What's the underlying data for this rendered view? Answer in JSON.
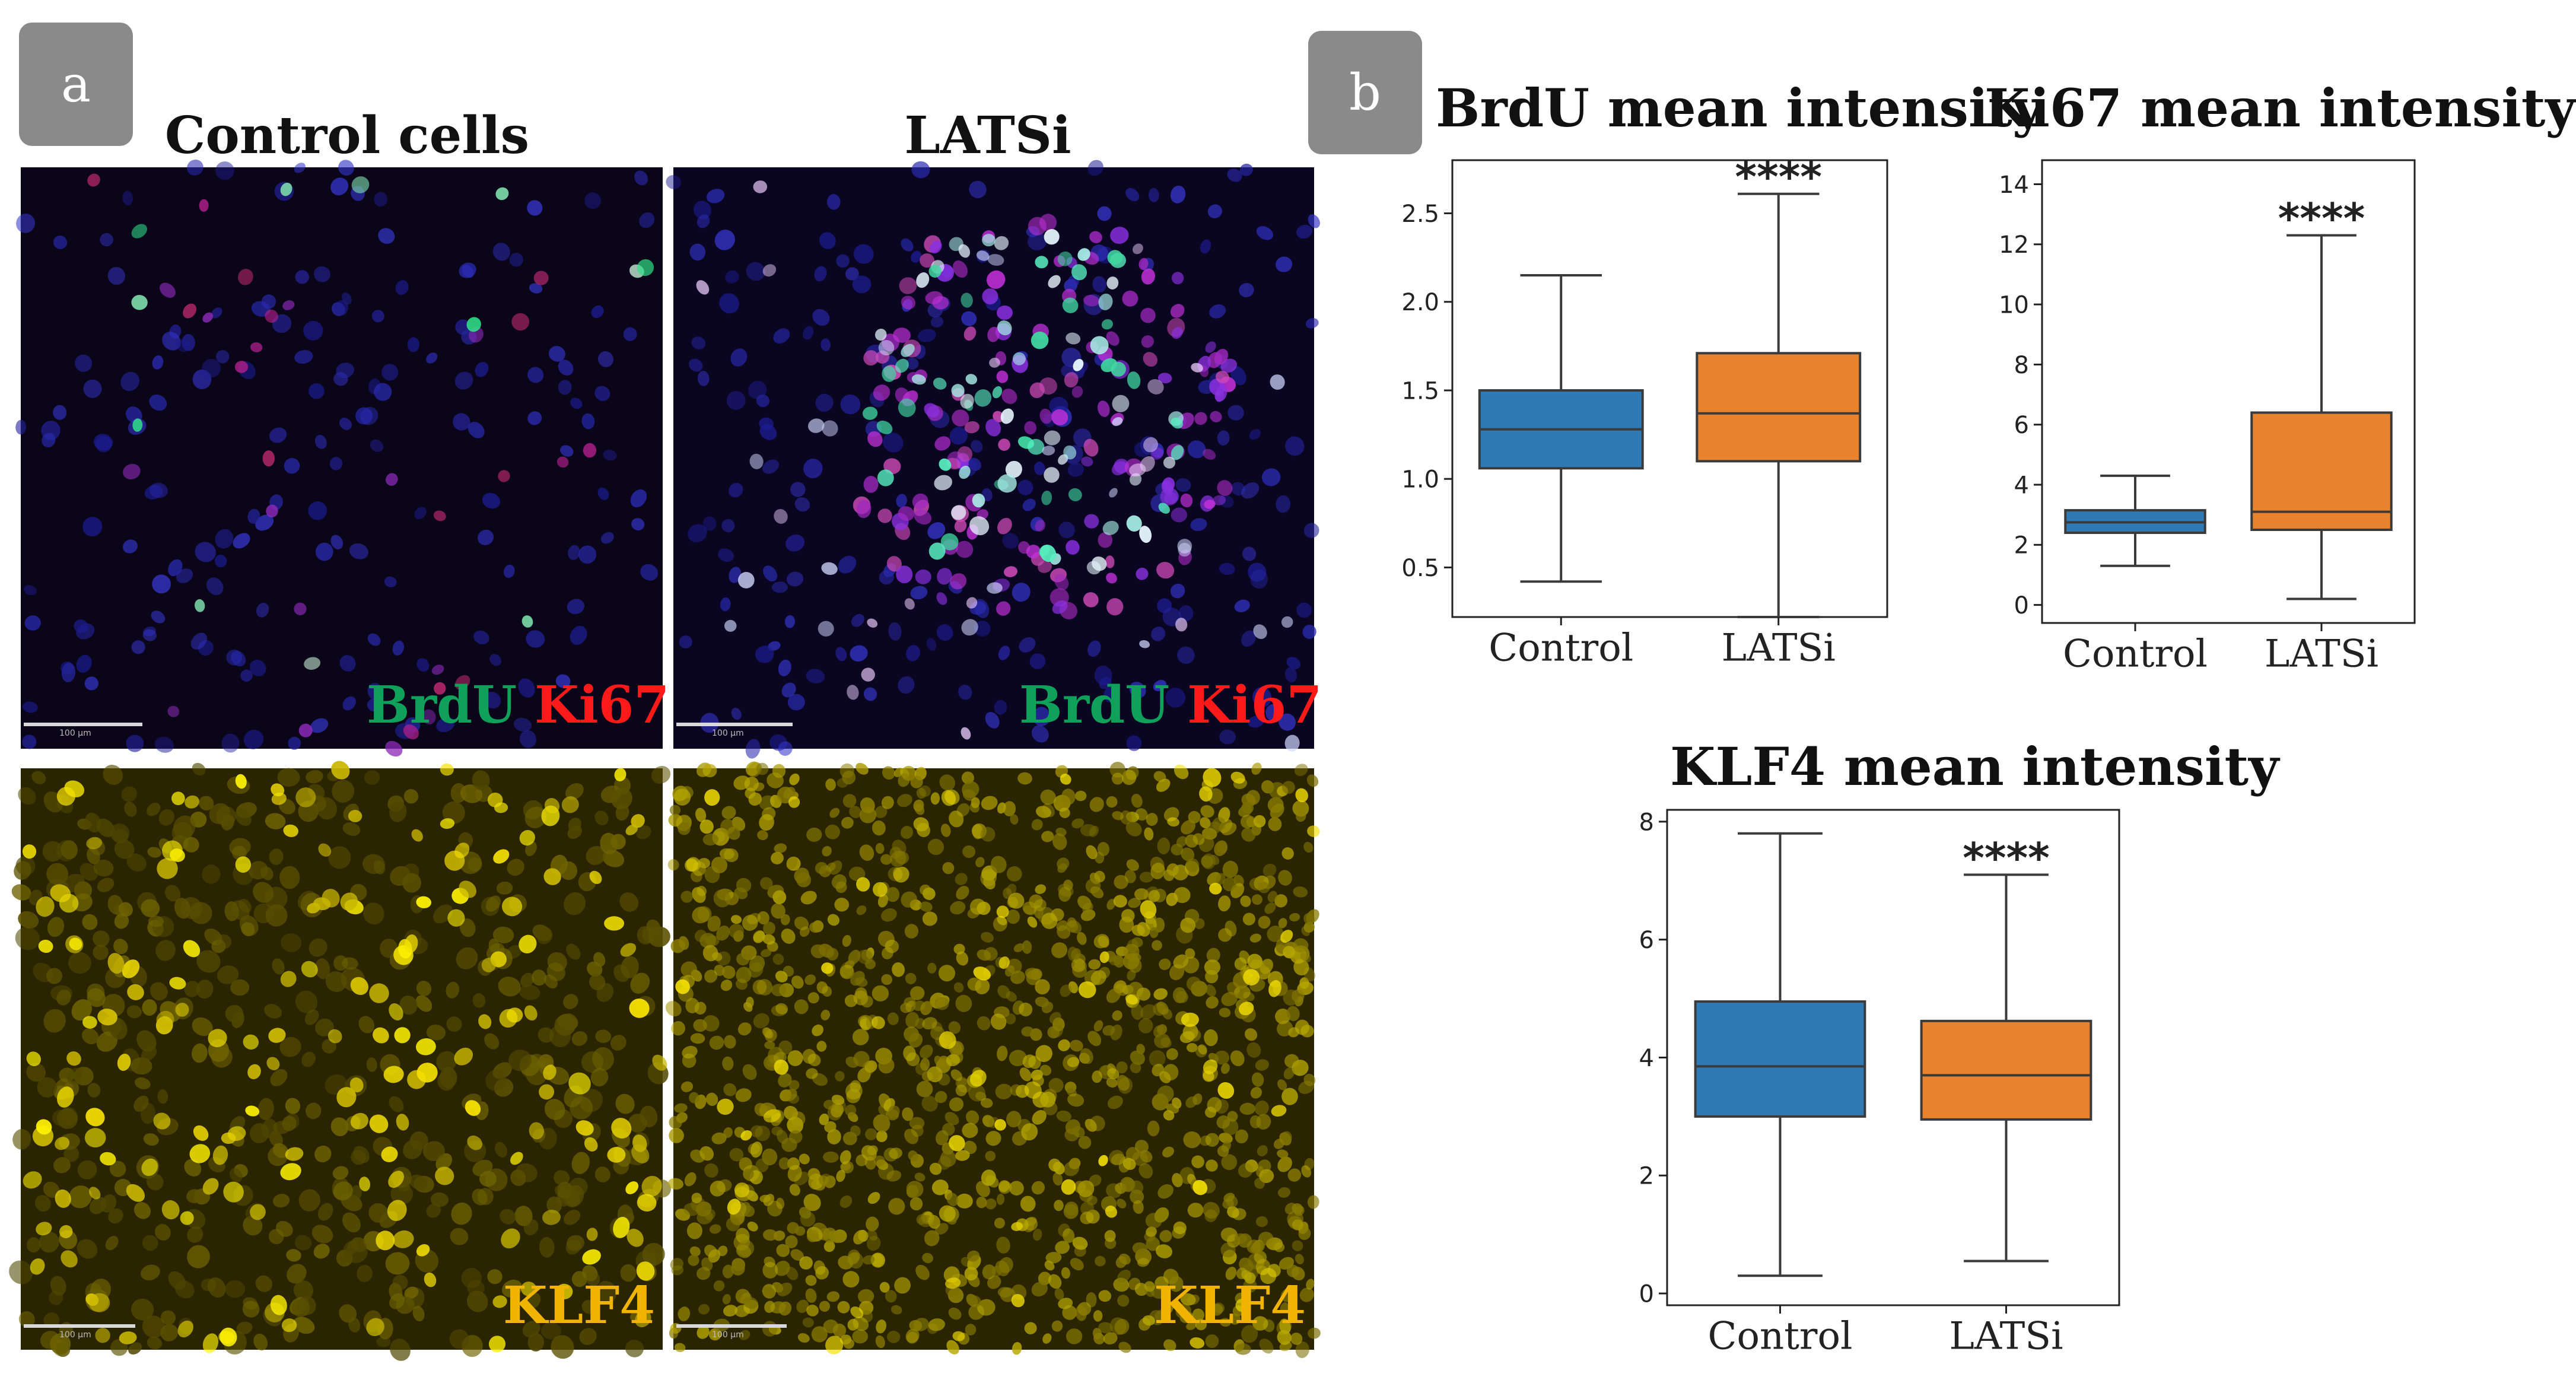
{
  "panel_a": {
    "tag": "a",
    "col_titles": [
      "Control cells",
      "LATSi"
    ],
    "top_labels": {
      "green": "BrdU",
      "red": "Ki67"
    },
    "bottom_label": "KLF4",
    "scale_text": "100 μm",
    "colors": {
      "green_label": "#0fa05a",
      "red_label": "#ff1a1a",
      "klf4_label": "#f0b400"
    }
  },
  "panel_b": {
    "tag": "b"
  },
  "chart_data": [
    {
      "type": "box",
      "title": "BrdU mean intensity",
      "categories": [
        "Control",
        "LATSi"
      ],
      "yticks": [
        0.5,
        1.0,
        1.5,
        2.0,
        2.5
      ],
      "ytick_labels": [
        "0.5",
        "1.0",
        "1.5",
        "2.0",
        "2.5"
      ],
      "ylim": [
        0.22,
        2.8
      ],
      "boxes": [
        {
          "name": "Control",
          "whisker_low": 0.42,
          "q1": 1.06,
          "median": 1.28,
          "q3": 1.5,
          "whisker_high": 2.15,
          "color": "#2f7ab5"
        },
        {
          "name": "LATSi",
          "whisker_low": 0.22,
          "q1": 1.1,
          "median": 1.37,
          "q3": 1.71,
          "whisker_high": 2.61,
          "color": "#e8822c"
        }
      ],
      "annotation": "****"
    },
    {
      "type": "box",
      "title": "Ki67 mean intensity",
      "categories": [
        "Control",
        "LATSi"
      ],
      "yticks": [
        0,
        2,
        4,
        6,
        8,
        10,
        12,
        14
      ],
      "ytick_labels": [
        "0",
        "2",
        "4",
        "6",
        "8",
        "10",
        "12",
        "14"
      ],
      "ylim": [
        -0.6,
        14.8
      ],
      "boxes": [
        {
          "name": "Control",
          "whisker_low": 1.3,
          "q1": 2.4,
          "median": 2.75,
          "q3": 3.15,
          "whisker_high": 4.3,
          "color": "#2f7ab5"
        },
        {
          "name": "LATSi",
          "whisker_low": 0.2,
          "q1": 2.5,
          "median": 3.1,
          "q3": 6.4,
          "whisker_high": 12.3,
          "color": "#e8822c"
        }
      ],
      "annotation": "****"
    },
    {
      "type": "box",
      "title": "KLF4 mean intensity",
      "categories": [
        "Control",
        "LATSi"
      ],
      "yticks": [
        0,
        2,
        4,
        6,
        8
      ],
      "ytick_labels": [
        "0",
        "2",
        "4",
        "6",
        "8"
      ],
      "ylim": [
        -0.2,
        8.2
      ],
      "boxes": [
        {
          "name": "Control",
          "whisker_low": 0.3,
          "q1": 3.0,
          "median": 3.85,
          "q3": 4.95,
          "whisker_high": 7.8,
          "color": "#2f7ab5"
        },
        {
          "name": "LATSi",
          "whisker_low": 0.55,
          "q1": 2.95,
          "median": 3.7,
          "q3": 4.62,
          "whisker_high": 7.1,
          "color": "#e8822c"
        }
      ],
      "annotation": "****"
    }
  ]
}
